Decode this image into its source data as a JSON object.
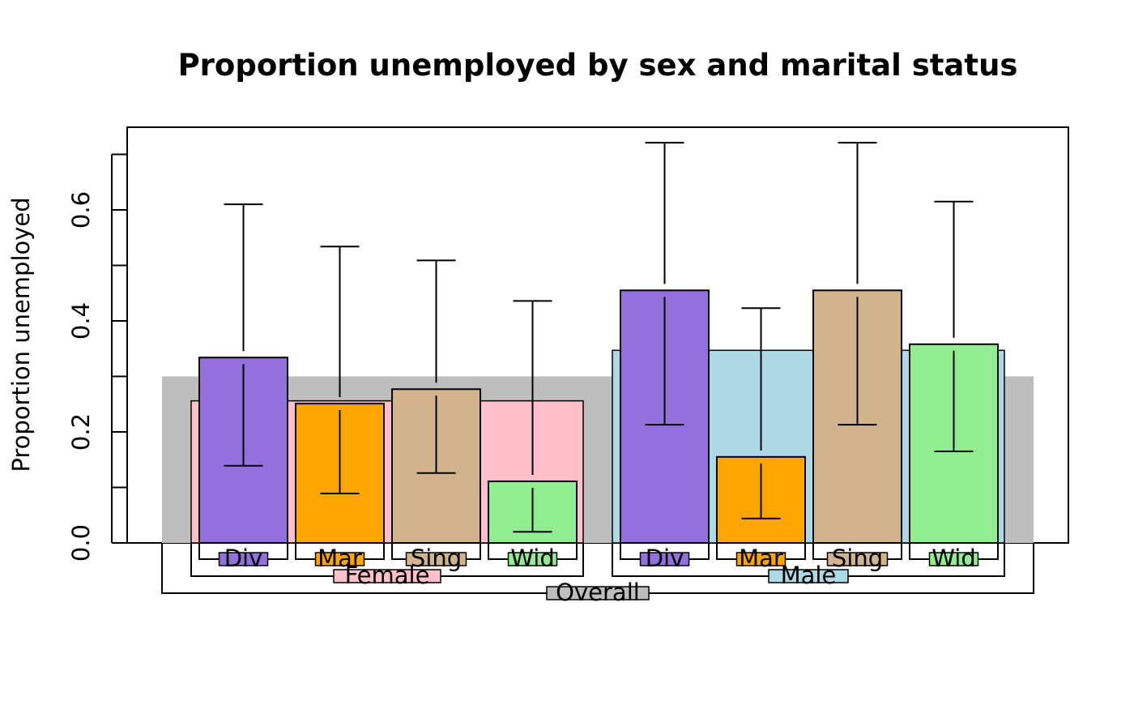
{
  "chart_data": {
    "type": "bar",
    "title": "Proportion unemployed by sex and marital status",
    "xlabel": "",
    "ylabel": "Proportion unemployed",
    "ylim": [
      0,
      0.7
    ],
    "yticks": [
      0,
      0.1,
      0.2,
      0.3,
      0.4,
      0.5,
      0.6,
      0.7
    ],
    "ytick_labels": [
      "0.0",
      "0.2",
      "0.4",
      "0.6"
    ],
    "ytick_label_values": [
      0,
      0.2,
      0.4,
      0.6
    ],
    "grid": false,
    "overall": {
      "label": "Overall",
      "value": 0.3,
      "color": "#BEBEBE"
    },
    "groups": [
      {
        "label": "Female",
        "value": 0.256,
        "color": "#FFC0CB",
        "bars": [
          {
            "label": "Div",
            "value": 0.334,
            "ci": [
              0.139,
              0.61
            ],
            "color": "#9370DB"
          },
          {
            "label": "Mar",
            "value": 0.251,
            "ci": [
              0.089,
              0.534
            ],
            "color": "#FFA500"
          },
          {
            "label": "Sing",
            "value": 0.277,
            "ci": [
              0.126,
              0.509
            ],
            "color": "#D2B48C"
          },
          {
            "label": "Wid",
            "value": 0.111,
            "ci": [
              0.02,
              0.436
            ],
            "color": "#90EE90"
          }
        ]
      },
      {
        "label": "Male",
        "value": 0.347,
        "color": "#ADD8E6",
        "bars": [
          {
            "label": "Div",
            "value": 0.455,
            "ci": [
              0.213,
              0.721
            ],
            "color": "#9370DB"
          },
          {
            "label": "Mar",
            "value": 0.155,
            "ci": [
              0.044,
              0.423
            ],
            "color": "#FFA500"
          },
          {
            "label": "Sing",
            "value": 0.455,
            "ci": [
              0.213,
              0.721
            ],
            "color": "#D2B48C"
          },
          {
            "label": "Wid",
            "value": 0.358,
            "ci": [
              0.165,
              0.615
            ],
            "color": "#90EE90"
          }
        ]
      }
    ]
  }
}
